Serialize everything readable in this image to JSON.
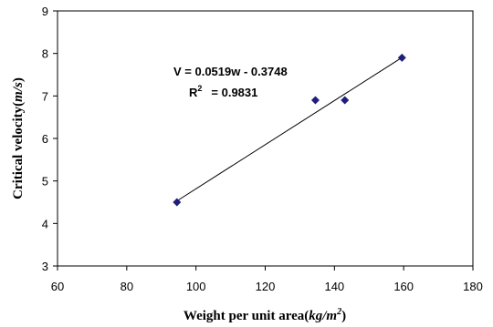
{
  "chart_data": {
    "type": "scatter",
    "title": "",
    "xlabel": {
      "main": "Weight per unit area(",
      "unit_base": "kg/m",
      "unit_sup": "2",
      "close": ")"
    },
    "ylabel": {
      "main": "Critical velocity(",
      "unit": "m/s",
      "close": ")"
    },
    "xlim": [
      60,
      180
    ],
    "ylim": [
      3,
      9
    ],
    "xticks": [
      "60",
      "80",
      "100",
      "120",
      "140",
      "160",
      "180"
    ],
    "yticks": [
      "3",
      "4",
      "5",
      "6",
      "7",
      "8",
      "9"
    ],
    "grid": false,
    "marker_color": "#1f1f7a",
    "points": [
      {
        "x": 94.5,
        "y": 4.5
      },
      {
        "x": 134.5,
        "y": 6.9
      },
      {
        "x": 143,
        "y": 6.9
      },
      {
        "x": 159.5,
        "y": 7.9
      }
    ],
    "trendline": {
      "slope": 0.0519,
      "intercept": -0.3748,
      "x_range": [
        94.5,
        159.5
      ],
      "equation_label": "V = 0.0519w - 0.3748",
      "r2_base": "R",
      "r2_sup": "2",
      "r2_value": "= 0.9831"
    }
  }
}
